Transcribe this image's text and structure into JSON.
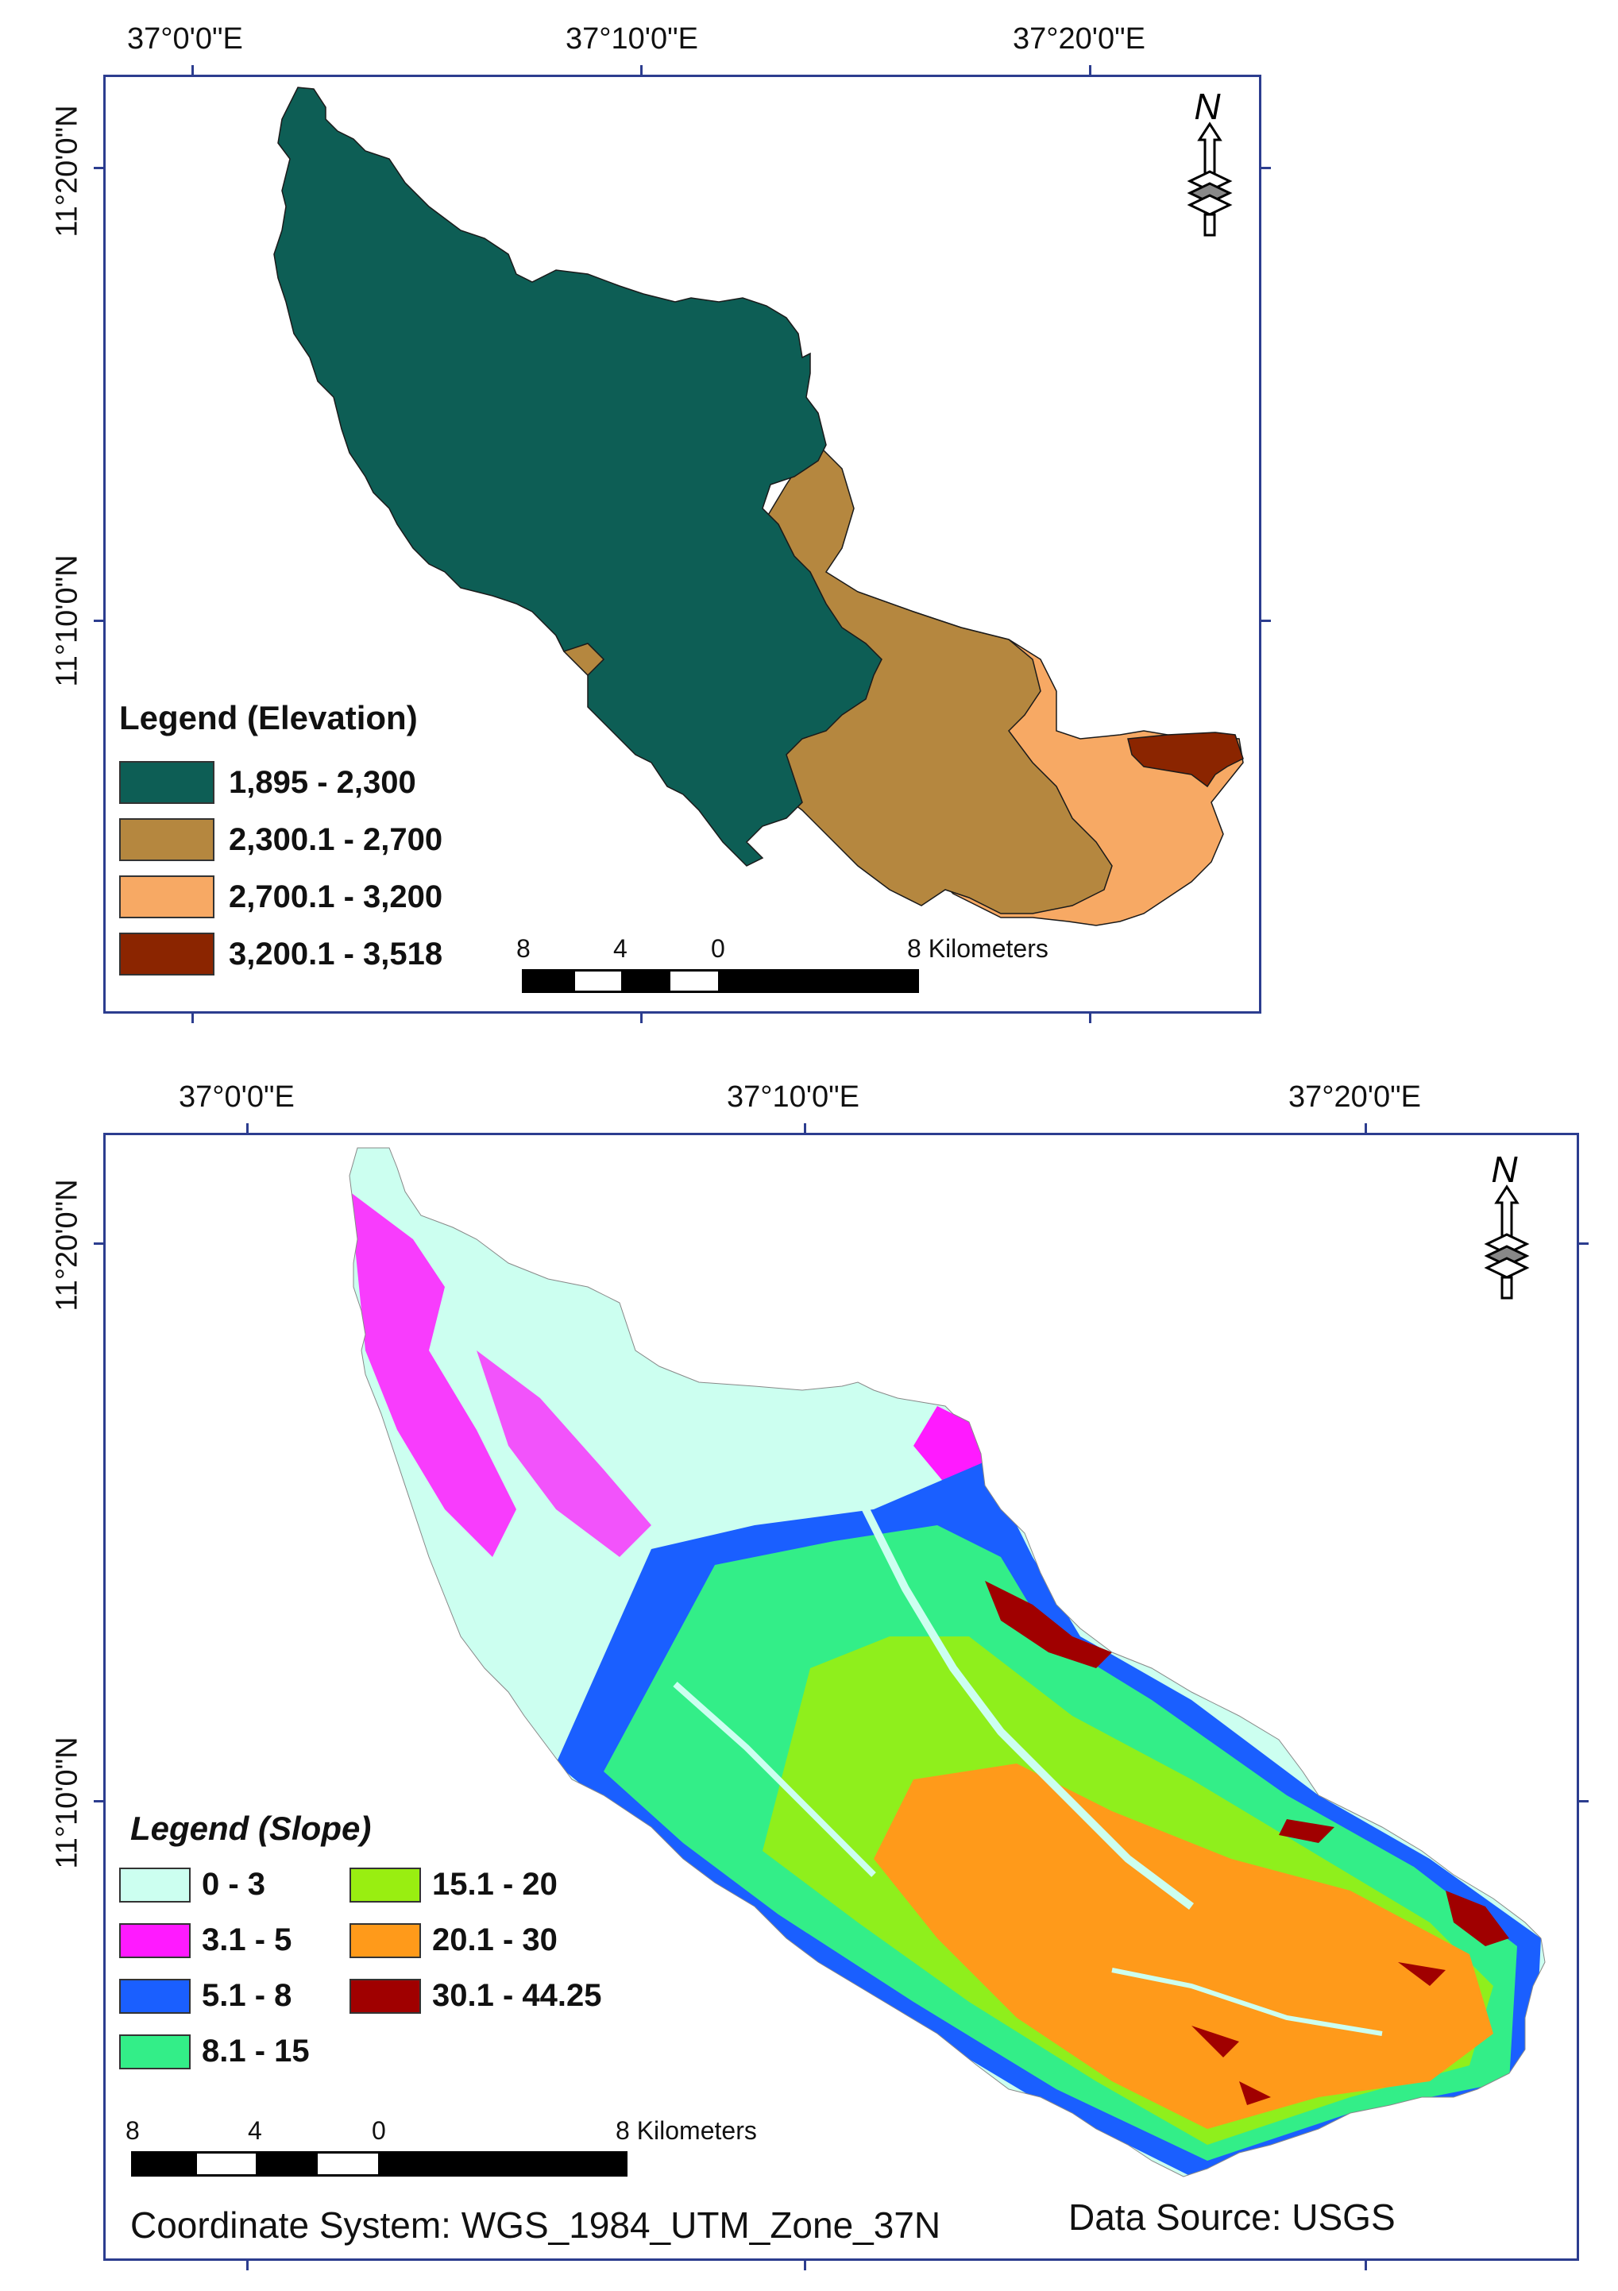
{
  "elevation_map": {
    "x_ticks": [
      "37°0'0\"E",
      "37°10'0\"E",
      "37°20'0\"E"
    ],
    "y_ticks": [
      "11°20'0\"N",
      "11°10'0\"N"
    ],
    "north_label": "N",
    "legend_title": "Legend (Elevation)",
    "legend": [
      {
        "label": "1,895 - 2,300",
        "color": "#0d5e55"
      },
      {
        "label": "2,300.1 - 2,700",
        "color": "#b5873f"
      },
      {
        "label": "2,700.1 - 3,200",
        "color": "#f7a964"
      },
      {
        "label": "3,200.1 - 3,518",
        "color": "#8b2500"
      }
    ],
    "scale": {
      "labels": [
        "8",
        "4",
        "0",
        "8 Kilometers"
      ]
    }
  },
  "slope_map": {
    "x_ticks": [
      "37°0'0\"E",
      "37°10'0\"E",
      "37°20'0\"E"
    ],
    "y_ticks": [
      "11°20'0\"N",
      "11°10'0\"N"
    ],
    "north_label": "N",
    "legend_title": "Legend (Slope)",
    "legend": [
      {
        "label": "0 - 3",
        "color": "#ccfff0"
      },
      {
        "label": "3.1 - 5",
        "color": "#ff1aff"
      },
      {
        "label": "5.1 - 8",
        "color": "#1a5fff"
      },
      {
        "label": "8.1 - 15",
        "color": "#33ee88"
      },
      {
        "label": "15.1 - 20",
        "color": "#99ee11"
      },
      {
        "label": "20.1 - 30",
        "color": "#ff9a1a"
      },
      {
        "label": "30.1 - 44.25",
        "color": "#a00000"
      }
    ],
    "scale": {
      "labels": [
        "8",
        "4",
        "0",
        "8 Kilometers"
      ]
    },
    "coordinate_system": "Coordinate System: WGS_1984_UTM_Zone_37N",
    "data_source": "Data Source: USGS"
  }
}
